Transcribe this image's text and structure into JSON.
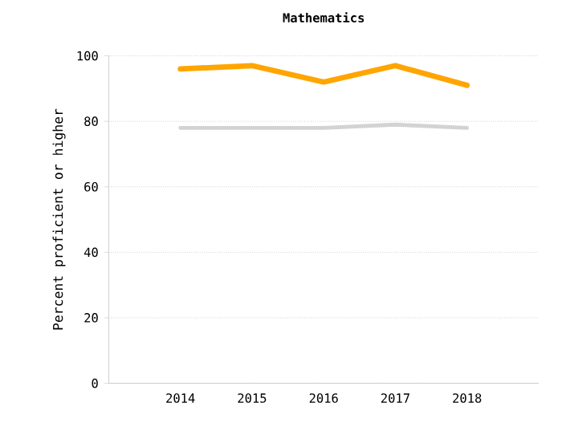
{
  "chart_data": {
    "type": "line",
    "title": "Mathematics",
    "ylabel": "Percent proficient or higher",
    "categories": [
      "2014",
      "2015",
      "2016",
      "2017",
      "2018"
    ],
    "series": [
      {
        "color": "#ffa500",
        "values": [
          96,
          97,
          92,
          97,
          91
        ]
      },
      {
        "color": "#d3d3d3",
        "values": [
          78,
          78,
          78,
          79,
          78
        ]
      }
    ],
    "ylim": [
      0,
      100
    ],
    "yticks": [
      0,
      20,
      40,
      60,
      80,
      100
    ],
    "grid": "y",
    "legend": false,
    "marker": "none",
    "line_style": "solid"
  }
}
